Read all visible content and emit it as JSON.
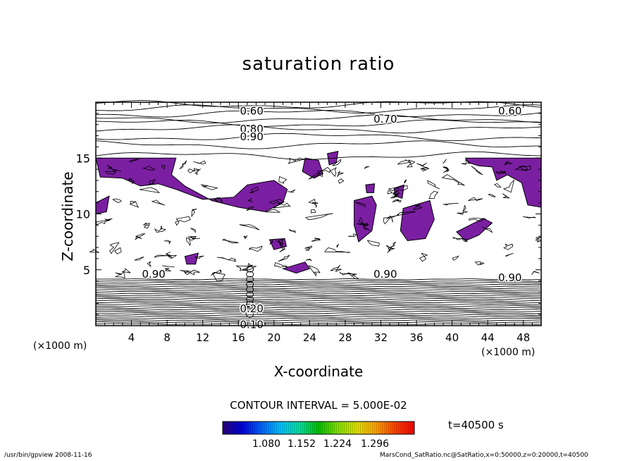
{
  "chart_data": {
    "type": "contour",
    "title": "saturation ratio",
    "xlabel": "X-coordinate",
    "ylabel": "Z-coordinate",
    "x_unit_left": "(×1000 m)",
    "x_unit_right": "(×1000 m)",
    "xlim": [
      0,
      50
    ],
    "ylim": [
      0,
      20
    ],
    "x_ticks": [
      "4",
      "8",
      "12",
      "16",
      "20",
      "24",
      "28",
      "32",
      "36",
      "40",
      "44",
      "48"
    ],
    "y_ticks": [
      "5",
      "10",
      "15"
    ],
    "contour_interval": "CONTOUR INTERVAL = 5.000E-02",
    "contour_labels": [
      {
        "text": "0.60",
        "x": 17.5,
        "z": 19.2
      },
      {
        "text": "0.60",
        "x": 46.5,
        "z": 19.2
      },
      {
        "text": "0.70",
        "x": 32.5,
        "z": 18.5
      },
      {
        "text": "0.80",
        "x": 17.5,
        "z": 17.6
      },
      {
        "text": "0.90",
        "x": 17.5,
        "z": 16.9
      },
      {
        "text": "0.90",
        "x": 6.5,
        "z": 4.6
      },
      {
        "text": "0.90",
        "x": 32.5,
        "z": 4.6
      },
      {
        "text": "0.90",
        "x": 46.5,
        "z": 4.3
      },
      {
        "text": "0.20",
        "x": 17.5,
        "z": 1.5
      },
      {
        "text": "0.10",
        "x": 17.5,
        "z": 0.1
      }
    ],
    "fill_color": "#7b1fa2",
    "colorbar": {
      "ticks": [
        "1.080",
        "1.152",
        "1.224",
        "1.296"
      ],
      "colors": [
        "#2a0080",
        "#0000e0",
        "#0060ff",
        "#00c0ff",
        "#00e0a0",
        "#00c000",
        "#80e000",
        "#e0e000",
        "#ffa000",
        "#ff4000",
        "#ff0000"
      ]
    },
    "time_label": "t=40500 s",
    "footer_left": "/usr/bin/gpview   2008-11-16",
    "footer_right": "MarsCond_SatRatio.nc@SatRatio,x=0:50000,z=0:20000,t=40500"
  }
}
